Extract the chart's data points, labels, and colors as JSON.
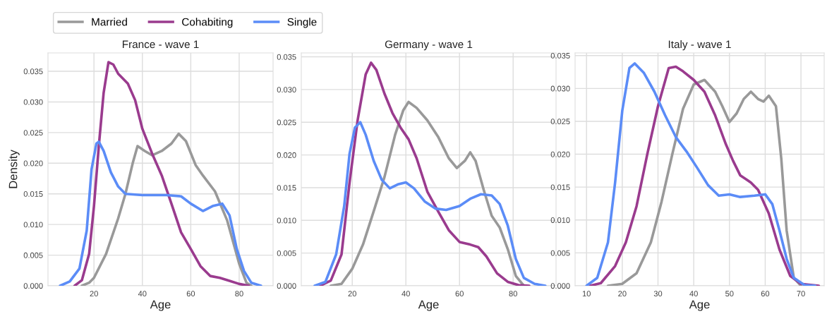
{
  "chart_data": [
    {
      "type": "line",
      "title": "France - wave 1",
      "xlabel": "Age",
      "ylabel": "Density",
      "xlim": [
        1,
        94
      ],
      "xticks": [
        20,
        40,
        60,
        80
      ],
      "ylim": [
        0,
        0.038
      ],
      "yticks": [
        {
          "value": 0,
          "label": "0.000"
        },
        {
          "value": 0.005,
          "label": "0.005"
        },
        {
          "value": 0.01,
          "label": "0.010"
        },
        {
          "value": 0.015,
          "label": "0.015"
        },
        {
          "value": 0.02,
          "label": "0.020"
        },
        {
          "value": 0.025,
          "label": "0.025"
        },
        {
          "value": 0.03,
          "label": "0.030"
        },
        {
          "value": 0.035,
          "label": "0.035"
        }
      ],
      "grid": true,
      "legend": "top",
      "line_style": "solid",
      "marker": "none",
      "series": [
        {
          "name": "Married",
          "color": "#999999",
          "x": [
            15,
            18,
            20,
            25,
            30,
            33,
            36,
            38,
            41,
            44,
            48,
            52,
            55,
            58,
            62,
            65,
            70,
            75,
            80,
            83,
            85
          ],
          "values": [
            0,
            0.0005,
            0.0013,
            0.0052,
            0.011,
            0.015,
            0.02,
            0.0228,
            0.022,
            0.0213,
            0.022,
            0.0232,
            0.0248,
            0.0236,
            0.0197,
            0.018,
            0.0154,
            0.0107,
            0.0036,
            0.0005,
            0
          ]
        },
        {
          "name": "Cohabiting",
          "color": "#9a3b8e",
          "x": [
            12,
            15,
            18,
            20,
            22,
            24,
            26,
            28,
            30,
            34,
            37,
            40,
            44,
            48,
            52,
            56,
            60,
            64,
            68,
            72,
            76,
            80,
            84
          ],
          "values": [
            0,
            0.0009,
            0.0052,
            0.013,
            0.0228,
            0.0315,
            0.0365,
            0.0361,
            0.0346,
            0.033,
            0.0303,
            0.0256,
            0.0216,
            0.018,
            0.0134,
            0.0087,
            0.006,
            0.0032,
            0.0016,
            0.0013,
            0.0008,
            0.0003,
            0
          ]
        },
        {
          "name": "Single",
          "color": "#5b8cf7",
          "x": [
            6,
            10,
            14,
            17,
            19,
            21,
            22,
            24,
            27,
            30,
            33,
            40,
            50,
            56,
            60,
            65,
            69,
            73,
            76,
            79,
            82,
            85,
            89
          ],
          "values": [
            0,
            0.0007,
            0.0028,
            0.009,
            0.019,
            0.0232,
            0.0235,
            0.022,
            0.0185,
            0.0162,
            0.015,
            0.0148,
            0.0148,
            0.0146,
            0.0134,
            0.0122,
            0.013,
            0.0134,
            0.0115,
            0.006,
            0.0024,
            0.0005,
            0
          ]
        }
      ]
    },
    {
      "type": "line",
      "title": "Germany - wave 1",
      "xlabel": "Age",
      "xlim": [
        1,
        96
      ],
      "xticks": [
        20,
        40,
        60,
        80
      ],
      "ylim": [
        0,
        0.0356
      ],
      "yticks": [
        {
          "value": 0,
          "label": "0.000"
        },
        {
          "value": 0.005,
          "label": "0.005"
        },
        {
          "value": 0.01,
          "label": "0.010"
        },
        {
          "value": 0.015,
          "label": "0.015"
        },
        {
          "value": 0.02,
          "label": "0.020"
        },
        {
          "value": 0.025,
          "label": "0.025"
        },
        {
          "value": 0.03,
          "label": "0.030"
        },
        {
          "value": 0.035,
          "label": "0.035"
        }
      ],
      "grid": true,
      "line_style": "solid",
      "marker": "none",
      "series": [
        {
          "color": "#999999",
          "x": [
            12,
            16,
            20,
            24,
            28,
            32,
            36,
            39,
            41,
            44,
            48,
            52,
            56,
            59,
            62,
            64,
            66,
            69,
            72,
            75,
            78,
            81,
            84
          ],
          "values": [
            0,
            0.0003,
            0.0026,
            0.0063,
            0.0114,
            0.0166,
            0.0231,
            0.0268,
            0.0281,
            0.0272,
            0.0253,
            0.0228,
            0.0195,
            0.018,
            0.0191,
            0.0204,
            0.0191,
            0.0147,
            0.0107,
            0.0089,
            0.0056,
            0.0015,
            0
          ]
        },
        {
          "color": "#9a3b8e",
          "x": [
            8,
            12,
            16,
            19,
            22,
            25,
            27,
            29,
            32,
            35,
            38,
            41,
            44,
            48,
            52,
            56,
            60,
            64,
            67,
            70,
            74,
            78,
            82,
            86
          ],
          "values": [
            0,
            0.0008,
            0.0048,
            0.0158,
            0.0253,
            0.0323,
            0.0341,
            0.033,
            0.0294,
            0.0264,
            0.0242,
            0.0224,
            0.0195,
            0.0144,
            0.0114,
            0.0085,
            0.0067,
            0.0063,
            0.0059,
            0.0045,
            0.0019,
            0.0006,
            0.0001,
            0
          ]
        },
        {
          "color": "#5b8cf7",
          "x": [
            6,
            10,
            14,
            17,
            19,
            21,
            23,
            25,
            28,
            31,
            34,
            37,
            40,
            43,
            47,
            51,
            55,
            60,
            64,
            68,
            72,
            75,
            78,
            81,
            84,
            88,
            92
          ],
          "values": [
            0,
            0.0006,
            0.0048,
            0.0122,
            0.0202,
            0.0242,
            0.025,
            0.0231,
            0.0191,
            0.0162,
            0.0149,
            0.0155,
            0.0158,
            0.0149,
            0.0129,
            0.0118,
            0.0116,
            0.0122,
            0.0133,
            0.014,
            0.0138,
            0.0125,
            0.0092,
            0.0041,
            0.0012,
            0.0003,
            0
          ]
        }
      ]
    },
    {
      "type": "line",
      "title": "Italy - wave 1",
      "xlabel": "Age",
      "xlim": [
        6.8,
        76.5
      ],
      "xticks": [
        10,
        20,
        30,
        40,
        50,
        60,
        70
      ],
      "ylim": [
        0,
        0.0354
      ],
      "yticks": [
        {
          "value": 0,
          "label": "0.000"
        },
        {
          "value": 0.005,
          "label": "0.005"
        },
        {
          "value": 0.01,
          "label": "0.010"
        },
        {
          "value": 0.015,
          "label": "0.015"
        },
        {
          "value": 0.02,
          "label": "0.020"
        },
        {
          "value": 0.025,
          "label": "0.025"
        },
        {
          "value": 0.03,
          "label": "0.030"
        },
        {
          "value": 0.035,
          "label": "0.035"
        }
      ],
      "grid": true,
      "line_style": "solid",
      "marker": "none",
      "series": [
        {
          "color": "#999999",
          "x": [
            16,
            20,
            24,
            28,
            31,
            34,
            37,
            40,
            43,
            46,
            48,
            50,
            52,
            54,
            56,
            58,
            59.5,
            61,
            63,
            64.5,
            66,
            68,
            70
          ],
          "values": [
            0,
            0.0003,
            0.0019,
            0.0066,
            0.0128,
            0.02,
            0.0269,
            0.0306,
            0.0313,
            0.0295,
            0.0273,
            0.0249,
            0.0262,
            0.0284,
            0.0295,
            0.0284,
            0.028,
            0.0289,
            0.0273,
            0.0193,
            0.0084,
            0.0012,
            0
          ]
        },
        {
          "color": "#9a3b8e",
          "x": [
            11,
            14,
            18,
            21,
            24,
            27,
            30,
            33,
            35,
            37,
            40,
            43,
            46,
            49,
            51,
            53,
            56,
            58,
            61,
            64,
            67,
            70,
            75
          ],
          "values": [
            0,
            0.0004,
            0.003,
            0.0066,
            0.0121,
            0.02,
            0.0273,
            0.0331,
            0.0333,
            0.0326,
            0.0313,
            0.0295,
            0.0259,
            0.0215,
            0.019,
            0.0168,
            0.0157,
            0.0146,
            0.011,
            0.0055,
            0.0015,
            0.0003,
            0
          ]
        },
        {
          "color": "#5b8cf7",
          "x": [
            10,
            13,
            16,
            18,
            20,
            22,
            23.5,
            26,
            29,
            32,
            35,
            38,
            41,
            44,
            47,
            50,
            53,
            57,
            60,
            62,
            64,
            66,
            68,
            71,
            74
          ],
          "values": [
            0,
            0.0012,
            0.0066,
            0.0157,
            0.0266,
            0.0331,
            0.0338,
            0.0324,
            0.0295,
            0.0259,
            0.0226,
            0.0204,
            0.0179,
            0.0153,
            0.0137,
            0.0139,
            0.0135,
            0.0137,
            0.0139,
            0.0124,
            0.0084,
            0.0041,
            0.0012,
            0.0001,
            0
          ]
        }
      ]
    }
  ]
}
